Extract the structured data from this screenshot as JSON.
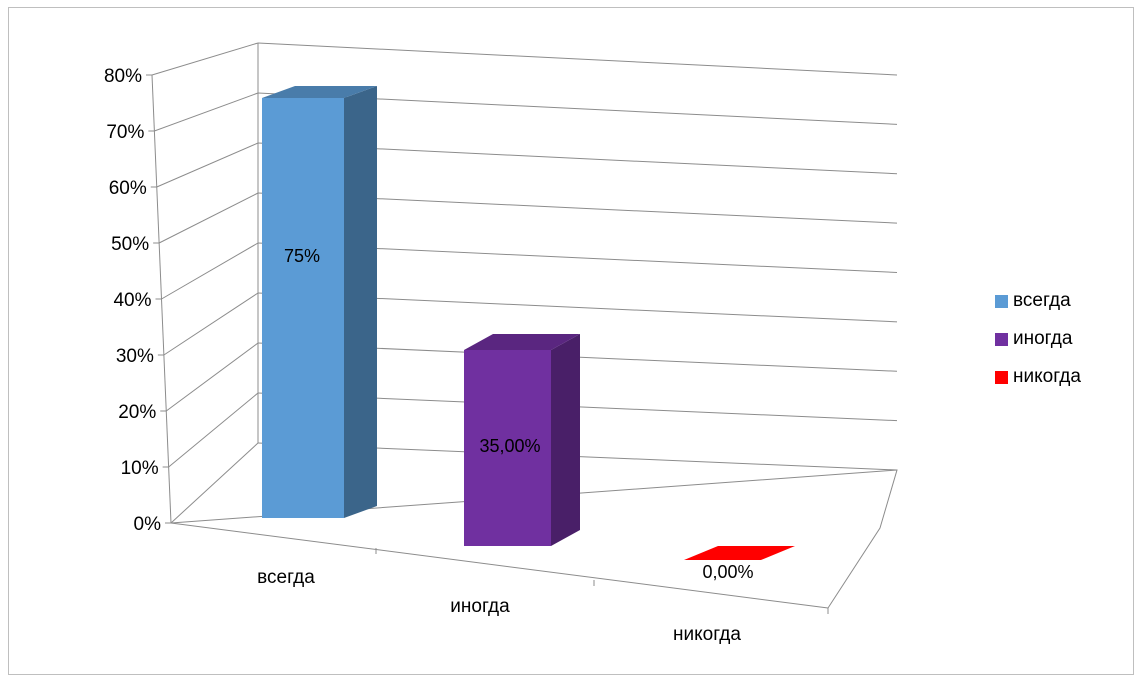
{
  "chart_data": {
    "type": "bar",
    "categories": [
      "всегда",
      "иногда",
      "никогда"
    ],
    "values": [
      0.75,
      0.35,
      0.0
    ],
    "data_labels": [
      "75%",
      "35,00%",
      "0,00%"
    ],
    "ylim": [
      0,
      0.8
    ],
    "y_ticks": [
      "0%",
      "10%",
      "20%",
      "30%",
      "40%",
      "50%",
      "60%",
      "70%",
      "80%"
    ],
    "grid": true,
    "legend_position": "right",
    "colors": [
      "#5B9BD5",
      "#7030A0",
      "#FF0000"
    ],
    "title": "",
    "xlabel": "",
    "ylabel": ""
  }
}
